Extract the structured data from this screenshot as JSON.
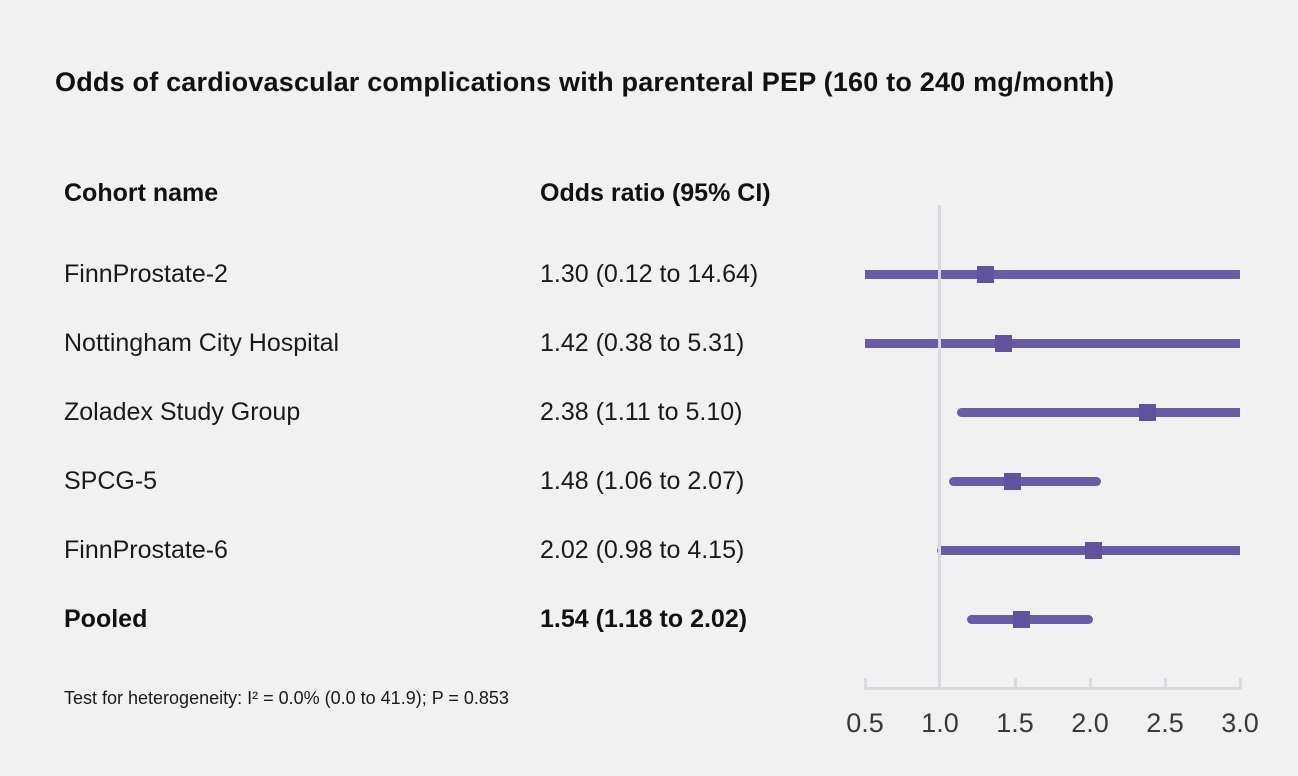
{
  "chart_data": {
    "type": "forest",
    "title": "Odds of cardiovascular complications with parenteral PEP (160 to 240 mg/month)",
    "columns": {
      "cohort": "Cohort name",
      "odds_ratio": "Odds ratio (95% CI)"
    },
    "rows": [
      {
        "label": "FinnProstate-2",
        "display": "1.30 (0.12 to 14.64)",
        "or": 1.3,
        "ci_low": 0.12,
        "ci_high": 14.64,
        "pooled": false
      },
      {
        "label": "Nottingham City Hospital",
        "display": "1.42 (0.38 to 5.31)",
        "or": 1.42,
        "ci_low": 0.38,
        "ci_high": 5.31,
        "pooled": false
      },
      {
        "label": "Zoladex Study Group",
        "display": "2.38 (1.11 to 5.10)",
        "or": 2.38,
        "ci_low": 1.11,
        "ci_high": 5.1,
        "pooled": false
      },
      {
        "label": "SPCG-5",
        "display": "1.48 (1.06 to 2.07)",
        "or": 1.48,
        "ci_low": 1.06,
        "ci_high": 2.07,
        "pooled": false
      },
      {
        "label": "FinnProstate-6",
        "display": "2.02 (0.98 to 4.15)",
        "or": 2.02,
        "ci_low": 0.98,
        "ci_high": 4.15,
        "pooled": false
      },
      {
        "label": "Pooled",
        "display": "1.54 (1.18 to 2.02)",
        "or": 1.54,
        "ci_low": 1.18,
        "ci_high": 2.02,
        "pooled": true
      }
    ],
    "x_axis": {
      "ticks": [
        "0.5",
        "1.0",
        "1.5",
        "2.0",
        "2.5",
        "3.0"
      ],
      "values": [
        0.5,
        1.0,
        1.5,
        2.0,
        2.5,
        3.0
      ],
      "range": [
        0.5,
        3.0
      ],
      "reference_line": 1.0,
      "grid": false
    },
    "footnote": "Test for heterogeneity: I² = 0.0% (0.0 to 41.9); P = 0.853",
    "colors": {
      "ci_line": "#6a5ba6",
      "marker": "#61529e",
      "axis": "#d7dae2",
      "background": "#f2f1f1",
      "text": "#111111",
      "tick_label": "#36393d"
    }
  }
}
